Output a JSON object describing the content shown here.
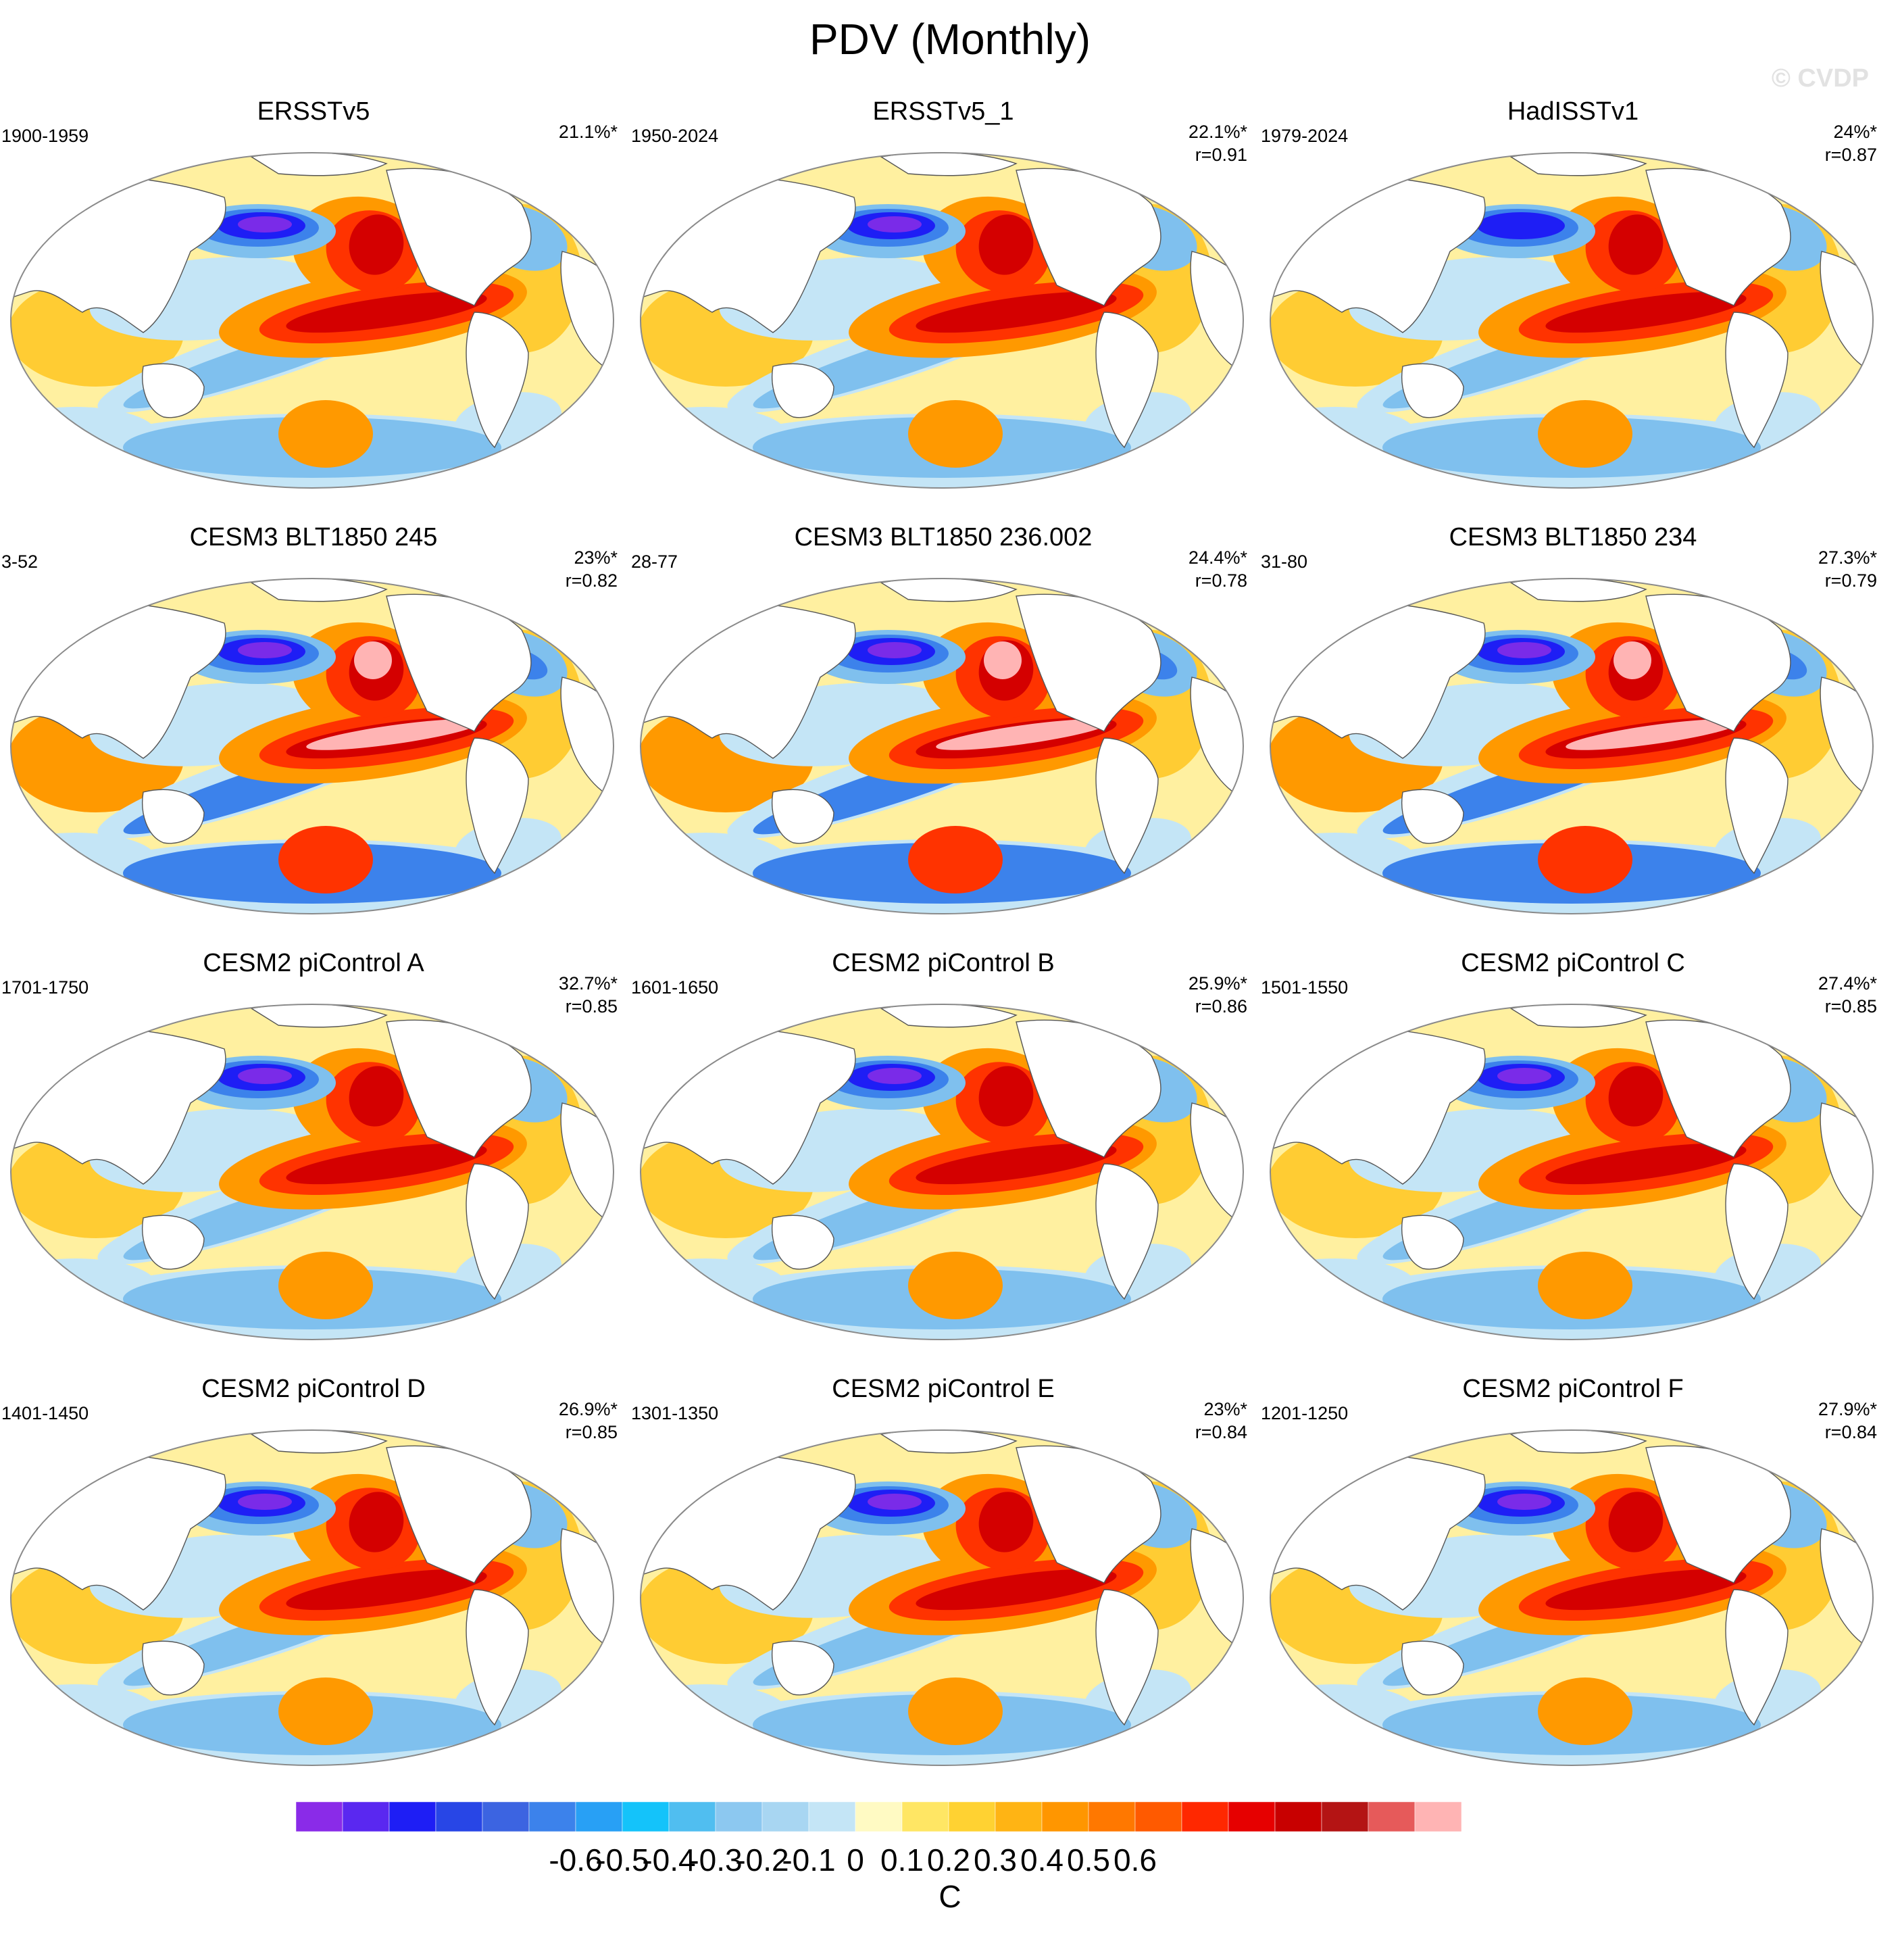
{
  "title": "PDV (Monthly)",
  "watermark": "© CVDP",
  "panels": [
    {
      "title": "ERSSTv5",
      "period": "1900-1959",
      "pct": "21.1%*",
      "r": "",
      "style": "obs1"
    },
    {
      "title": "ERSSTv5_1",
      "period": "1950-2024",
      "pct": "22.1%*",
      "r": "r=0.91",
      "style": "obs1"
    },
    {
      "title": "HadISSTv1",
      "period": "1979-2024",
      "pct": "24%*",
      "r": "r=0.87",
      "style": "obs2"
    },
    {
      "title": "CESM3 BLT1850 245",
      "period": "3-52",
      "pct": "23%*",
      "r": "r=0.82",
      "style": "strong"
    },
    {
      "title": "CESM3 BLT1850 236.002",
      "period": "28-77",
      "pct": "24.4%*",
      "r": "r=0.78",
      "style": "strong"
    },
    {
      "title": "CESM3 BLT1850 234",
      "period": "31-80",
      "pct": "27.3%*",
      "r": "r=0.79",
      "style": "strong"
    },
    {
      "title": "CESM2 piControl A",
      "period": "1701-1750",
      "pct": "32.7%*",
      "r": "r=0.85",
      "style": "model"
    },
    {
      "title": "CESM2 piControl B",
      "period": "1601-1650",
      "pct": "25.9%*",
      "r": "r=0.86",
      "style": "model"
    },
    {
      "title": "CESM2 piControl C",
      "period": "1501-1550",
      "pct": "27.4%*",
      "r": "r=0.85",
      "style": "model"
    },
    {
      "title": "CESM2 piControl D",
      "period": "1401-1450",
      "pct": "26.9%*",
      "r": "r=0.85",
      "style": "model"
    },
    {
      "title": "CESM2 piControl E",
      "period": "1301-1350",
      "pct": "23%*",
      "r": "r=0.84",
      "style": "model"
    },
    {
      "title": "CESM2 piControl F",
      "period": "1201-1250",
      "pct": "27.9%*",
      "r": "r=0.84",
      "style": "model"
    }
  ],
  "colorbar": {
    "unit": "C",
    "tick_labels": [
      "-0.6",
      "-0.5",
      "-0.4",
      "-0.3",
      "-0.2",
      "-0.1",
      "0",
      "0.1",
      "0.2",
      "0.3",
      "0.4",
      "0.5",
      "0.6"
    ],
    "colors": [
      "#8a2be8",
      "#5a28f0",
      "#1e1ef5",
      "#2846e6",
      "#3c64e1",
      "#3c82eb",
      "#28a0f5",
      "#14c3fa",
      "#50bef0",
      "#8cc8f0",
      "#a8d6f2",
      "#c4e5f6",
      "#fffac3",
      "#ffe664",
      "#ffd232",
      "#ffb414",
      "#ff9600",
      "#ff7800",
      "#ff5a00",
      "#ff2800",
      "#e60000",
      "#c80000",
      "#b41414",
      "#e65a5a",
      "#ffb4b4"
    ]
  },
  "palette": {
    "land": "#ffffff",
    "coast": "#555555",
    "border": "#8a8a8a",
    "warm_light": "#fff0a0",
    "warm_mid": "#ffcc33",
    "warm_strong": "#ff9900",
    "hot": "#ff3300",
    "hotter": "#d40000",
    "hottest": "#ffb4b4",
    "cool_light": "#c4e5f6",
    "cool_mid": "#7fc0ee",
    "cool_strong": "#3c82eb",
    "cold": "#1e1ef5",
    "coldest": "#7a2be8"
  }
}
